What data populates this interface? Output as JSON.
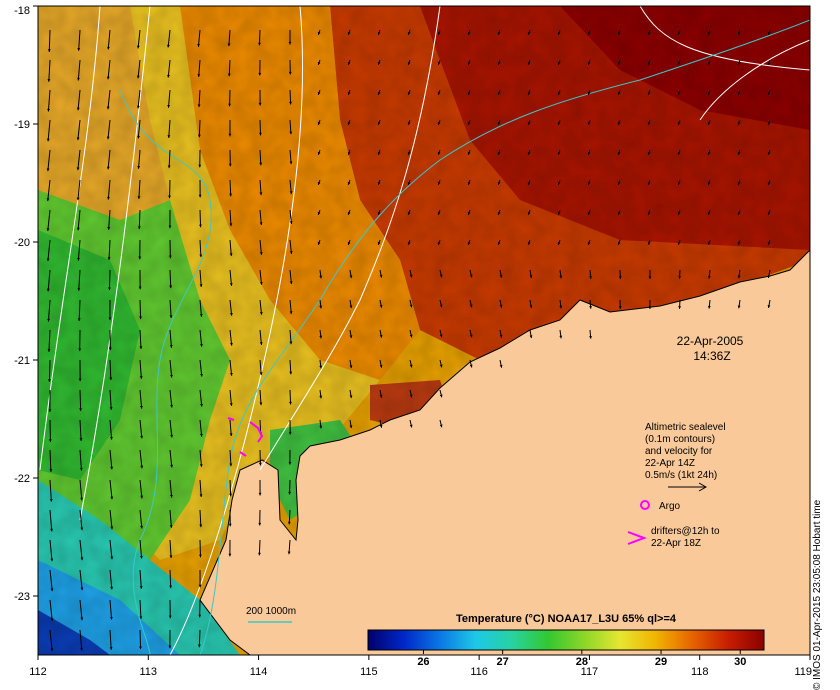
{
  "map": {
    "type": "heatmap",
    "title": "",
    "lon_range": [
      112,
      119
    ],
    "lat_range": [
      -23.5,
      -18
    ],
    "x_ticks": [
      112,
      113,
      114,
      115,
      116,
      117,
      118,
      119
    ],
    "y_ticks": [
      -18,
      -19,
      -20,
      -21,
      -22,
      -23
    ],
    "x_tick_labels": [
      "112",
      "113",
      "114",
      "115",
      "116",
      "117",
      "118",
      "119"
    ],
    "y_tick_labels": [
      "-18",
      "-19",
      "-20",
      "-21",
      "-22",
      "-23"
    ],
    "colors": {
      "land": "#f9c99a",
      "contour_200": "#3cc8c8",
      "contour_1000": "#ffffff",
      "argo": "#ff00ff",
      "drifter": "#ff00ff",
      "arrow": "#000000"
    },
    "colorbar": {
      "title": "Temperature (°C) NOAA17_L3U 65% ql>=4",
      "vmin": 25.3,
      "vmax": 30.3,
      "ticks": [
        26,
        27,
        28,
        29,
        30
      ],
      "tick_labels": [
        "26",
        "27",
        "28",
        "29",
        "30"
      ],
      "stops": [
        "#00006a",
        "#0028c8",
        "#0a78e6",
        "#1ec8e6",
        "#28d2a0",
        "#32c832",
        "#8cd628",
        "#e6e632",
        "#f0b400",
        "#e66400",
        "#c81e00",
        "#8c0000"
      ]
    }
  },
  "annotations": {
    "date": "22-Apr-2005",
    "time": "14:36Z",
    "altimetry_lines": [
      "Altimetric sealevel",
      "(0.1m contours)",
      "and velocity for",
      "22-Apr 14Z",
      "0.5m/s (1kt 24h)"
    ],
    "argo_label": "Argo",
    "drifter_lines": [
      "drifters@12h to",
      "22-Apr 18Z"
    ],
    "contour_legend": "200  1000m",
    "credit": "© IMOS 01-Apr-2015 23:05:08 Hobart time"
  }
}
